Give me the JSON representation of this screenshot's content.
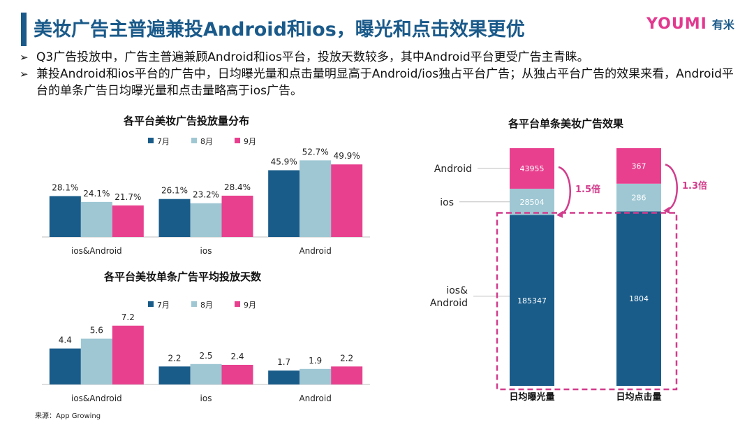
{
  "header": {
    "title": "美妆广告主普遍兼投Android和ios，曝光和点击效果更优",
    "logo_text": "YOUMI",
    "logo_cn": "有米"
  },
  "bullets": [
    "Q3广告投放中，广告主普遍兼顾Android和ios平台，投放天数较多，其中Android平台更受广告主青睐。",
    "兼投Android和ios平台的广告中，日均曝光量和点击量明显高于Android/ios独占平台广告；从独占平台广告的效果来看，Android平台的单条广告日均曝光量和点击量略高于ios广告。"
  ],
  "source": "来源：App Growing",
  "colors": {
    "jul": "#195c8a",
    "aug": "#9ec7d3",
    "sep": "#e8408f",
    "accent": "#d23c8c"
  },
  "chart_data": [
    {
      "id": "distribution",
      "type": "bar",
      "title": "各平台美妆广告投放量分布",
      "categories": [
        "ios&Android",
        "ios",
        "Android"
      ],
      "series": [
        {
          "name": "7月",
          "values": [
            28.1,
            26.1,
            45.9
          ],
          "labels": [
            "28.1%",
            "26.1%",
            "45.9%"
          ]
        },
        {
          "name": "8月",
          "values": [
            24.1,
            23.2,
            52.7
          ],
          "labels": [
            "24.1%",
            "23.2%",
            "52.7%"
          ]
        },
        {
          "name": "9月",
          "values": [
            21.7,
            28.4,
            49.9
          ],
          "labels": [
            "21.7%",
            "28.4%",
            "49.9%"
          ]
        }
      ],
      "ylim": [
        0,
        60
      ],
      "legend": "top"
    },
    {
      "id": "days",
      "type": "bar",
      "title": "各平台美妆单条广告平均投放天数",
      "categories": [
        "ios&Android",
        "ios",
        "Android"
      ],
      "series": [
        {
          "name": "7月",
          "values": [
            4.4,
            2.2,
            1.7
          ],
          "labels": [
            "4.4",
            "2.2",
            "1.7"
          ]
        },
        {
          "name": "8月",
          "values": [
            5.6,
            2.5,
            1.9
          ],
          "labels": [
            "5.6",
            "2.5",
            "1.9"
          ]
        },
        {
          "name": "9月",
          "values": [
            7.2,
            2.4,
            2.2
          ],
          "labels": [
            "7.2",
            "2.4",
            "2.2"
          ]
        }
      ],
      "ylim": [
        0,
        8
      ],
      "legend": "top"
    },
    {
      "id": "effect",
      "type": "bar",
      "stacked": true,
      "normalized": true,
      "title": "各平台单条美妆广告效果",
      "categories": [
        "日均曝光量",
        "日均点击量"
      ],
      "series": [
        {
          "name": "ios&\nAndroid",
          "values": [
            185347,
            1804
          ]
        },
        {
          "name": "ios",
          "values": [
            28504,
            286
          ]
        },
        {
          "name": "Android",
          "values": [
            43955,
            367
          ]
        }
      ],
      "ratio_labels": [
        "1.5倍",
        "1.3倍"
      ],
      "legend": "left"
    }
  ]
}
